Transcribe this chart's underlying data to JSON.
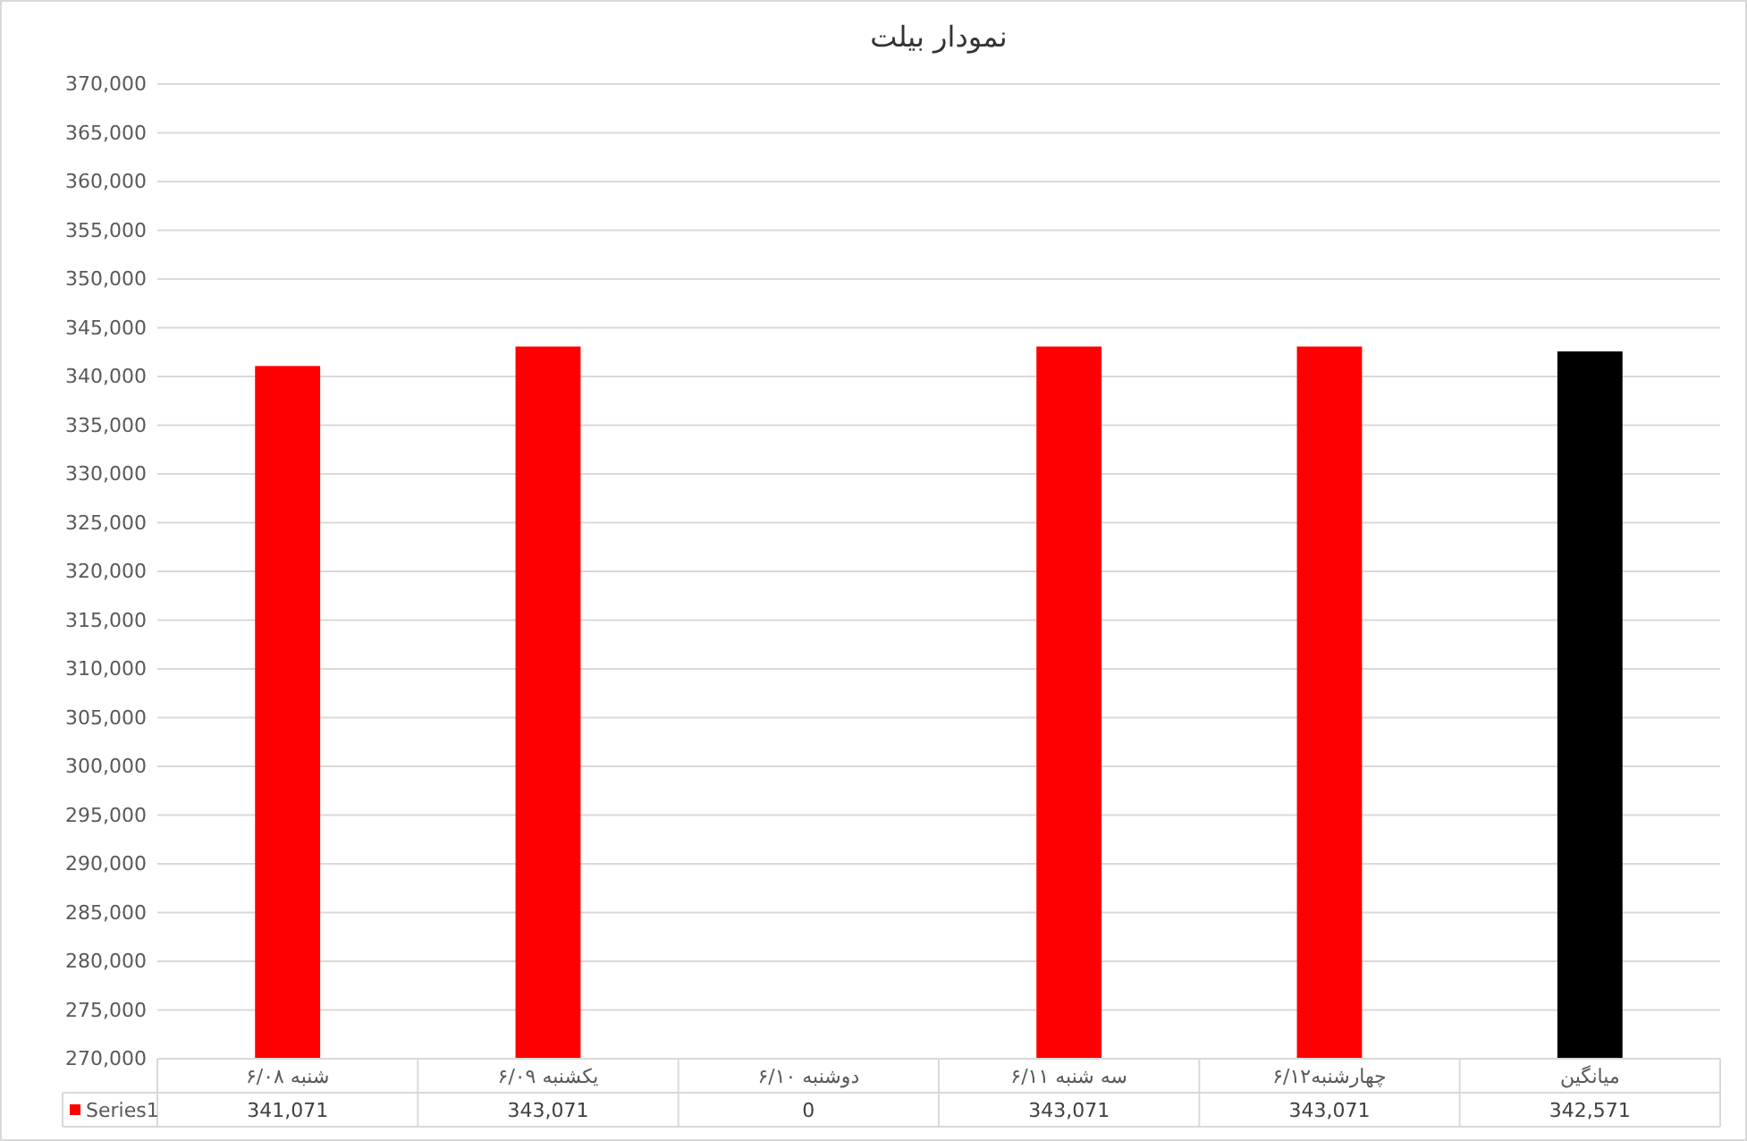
{
  "chart_data": {
    "type": "bar",
    "title": "نمودار بیلت",
    "categories": [
      "شنبه ۶/۰۸",
      "یکشنبه ۶/۰۹",
      "دوشنبه ۶/۱۰",
      "سه شنبه ۶/۱۱",
      "چهارشنبه۶/۱۲",
      "میانگین"
    ],
    "series": [
      {
        "name": "Series1",
        "color": "#ff0000",
        "colors": [
          "#ff0000",
          "#ff0000",
          null,
          "#ff0000",
          "#ff0000",
          "#000000"
        ],
        "values": [
          341071,
          343071,
          null,
          343071,
          343071,
          342571
        ],
        "value_labels": [
          "341,071",
          "343,071",
          "0",
          "343,071",
          "343,071",
          "342,571"
        ]
      }
    ],
    "ylim": [
      270000,
      370000
    ],
    "yticks": [
      {
        "value": 270000,
        "label": "270,000"
      },
      {
        "value": 275000,
        "label": "275,000"
      },
      {
        "value": 280000,
        "label": "280,000"
      },
      {
        "value": 285000,
        "label": "285,000"
      },
      {
        "value": 290000,
        "label": "290,000"
      },
      {
        "value": 295000,
        "label": "295,000"
      },
      {
        "value": 300000,
        "label": "300,000"
      },
      {
        "value": 305000,
        "label": "305,000"
      },
      {
        "value": 310000,
        "label": "310,000"
      },
      {
        "value": 315000,
        "label": "315,000"
      },
      {
        "value": 320000,
        "label": "320,000"
      },
      {
        "value": 325000,
        "label": "325,000"
      },
      {
        "value": 330000,
        "label": "330,000"
      },
      {
        "value": 335000,
        "label": "335,000"
      },
      {
        "value": 340000,
        "label": "340,000"
      },
      {
        "value": 345000,
        "label": "345,000"
      },
      {
        "value": 350000,
        "label": "350,000"
      },
      {
        "value": 355000,
        "label": "355,000"
      },
      {
        "value": 360000,
        "label": "360,000"
      },
      {
        "value": 365000,
        "label": "365,000"
      },
      {
        "value": 370000,
        "label": "370,000"
      }
    ],
    "grid": "y",
    "legend": "bottom"
  }
}
